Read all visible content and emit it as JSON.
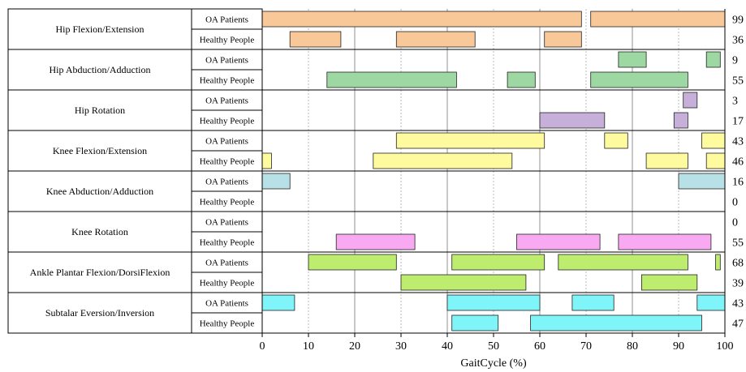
{
  "chart_data": {
    "type": "bar",
    "xlabel": "GaitCycle (%)",
    "ylabel": "",
    "xlim": [
      0,
      100
    ],
    "xticks": [
      0,
      10,
      20,
      30,
      40,
      50,
      60,
      70,
      80,
      90,
      100
    ],
    "colors": {
      "orange": "#f9c898",
      "green": "#9dd8a3",
      "purple": "#c6afd9",
      "yellow": "#fdfb9d",
      "lightblue": "#b7e1e6",
      "pink": "#f9a9f2",
      "lime": "#bdec6e",
      "cyan": "#7ff5f9"
    },
    "groups": [
      {
        "name": "Hip Flexion/Extension",
        "color": "orange",
        "rows": [
          {
            "label": "OA Patients",
            "value": "99",
            "bars": [
              [
                0,
                69
              ],
              [
                71,
                100
              ]
            ]
          },
          {
            "label": "Healthy People",
            "value": "36",
            "bars": [
              [
                6,
                17
              ],
              [
                29,
                46
              ],
              [
                61,
                69
              ]
            ]
          }
        ]
      },
      {
        "name": "Hip Abduction/Adduction",
        "color": "green",
        "rows": [
          {
            "label": "OA Patients",
            "value": "9",
            "bars": [
              [
                77,
                83
              ],
              [
                96,
                99
              ]
            ]
          },
          {
            "label": "Healthy People",
            "value": "55",
            "bars": [
              [
                14,
                42
              ],
              [
                53,
                59
              ],
              [
                71,
                92
              ]
            ]
          }
        ]
      },
      {
        "name": "Hip Rotation",
        "color": "purple",
        "rows": [
          {
            "label": "OA Patients",
            "value": "3",
            "bars": [
              [
                91,
                94
              ]
            ]
          },
          {
            "label": "Healthy People",
            "value": "17",
            "bars": [
              [
                60,
                74
              ],
              [
                89,
                92
              ]
            ]
          }
        ]
      },
      {
        "name": "Knee Flexion/Extension",
        "color": "yellow",
        "rows": [
          {
            "label": "OA Patients",
            "value": "43",
            "bars": [
              [
                29,
                61
              ],
              [
                74,
                79
              ],
              [
                95,
                100
              ]
            ]
          },
          {
            "label": "Healthy People",
            "value": "46",
            "bars": [
              [
                0,
                2
              ],
              [
                24,
                54
              ],
              [
                83,
                92
              ],
              [
                96,
                100
              ]
            ]
          }
        ]
      },
      {
        "name": "Knee Abduction/Adduction",
        "color": "lightblue",
        "rows": [
          {
            "label": "OA Patients",
            "value": "16",
            "bars": [
              [
                0,
                6
              ],
              [
                90,
                100
              ]
            ]
          },
          {
            "label": "Healthy People",
            "value": "0",
            "bars": []
          }
        ]
      },
      {
        "name": "Knee Rotation",
        "color": "pink",
        "rows": [
          {
            "label": "OA Patients",
            "value": "0",
            "bars": []
          },
          {
            "label": "Healthy People",
            "value": "55",
            "bars": [
              [
                16,
                33
              ],
              [
                55,
                73
              ],
              [
                77,
                97
              ]
            ]
          }
        ]
      },
      {
        "name": "Ankle Plantar Flexion/DorsiFlexion",
        "color": "lime",
        "rows": [
          {
            "label": "OA Patients",
            "value": "68",
            "bars": [
              [
                10,
                29
              ],
              [
                41,
                61
              ],
              [
                64,
                92
              ],
              [
                98,
                99
              ]
            ]
          },
          {
            "label": "Healthy People",
            "value": "39",
            "bars": [
              [
                30,
                57
              ],
              [
                82,
                94
              ]
            ]
          }
        ]
      },
      {
        "name": "Subtalar Eversion/Inversion",
        "color": "cyan",
        "rows": [
          {
            "label": "OA Patients",
            "value": "43",
            "bars": [
              [
                0,
                7
              ],
              [
                40,
                60
              ],
              [
                67,
                76
              ],
              [
                94,
                100
              ]
            ]
          },
          {
            "label": "Healthy People",
            "value": "47",
            "bars": [
              [
                41,
                51
              ],
              [
                58,
                95
              ]
            ]
          }
        ]
      }
    ]
  }
}
